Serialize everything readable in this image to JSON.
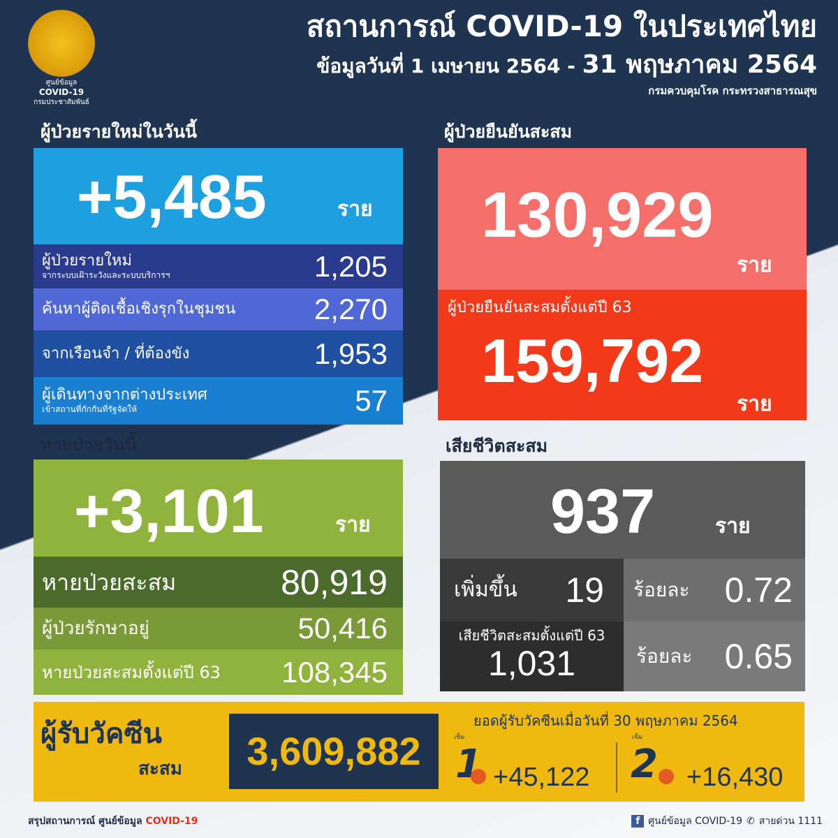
{
  "header": {
    "title": "สถานการณ์ COVID-19 ในประเทศไทย",
    "subtitle_prefix": "ข้อมูลวันที่ 1 เมษายน 2564 -",
    "subtitle_date": "31 พฤษภาคม 2564",
    "org": "กรมควบคุมโรค กระทรวงสาธารณสุข",
    "logo_line1": "ศูนย์ข้อมูล",
    "logo_line2": "COVID-19",
    "logo_line3": "กรมประชาสัมพันธ์"
  },
  "new_cases": {
    "heading": "ผู้ป่วยรายใหม่ในวันนี้",
    "total": "+5,485",
    "unit": "ราย",
    "rows": [
      {
        "label": "ผู้ป่วยรายใหม่",
        "sublabel": "จากระบบเฝ้าระวังและระบบบริการฯ",
        "value": "1,205"
      },
      {
        "label": "ค้นหาผู้ติดเชื้อเชิงรุกในชุมชน",
        "value": "2,270"
      },
      {
        "label": "จากเรือนจำ / ที่ต้องขัง",
        "value": "1,953"
      },
      {
        "label": "ผู้เดินทางจากต่างประเทศ",
        "sublabel": "เข้าสถานที่กักกันที่รัฐจัดให้",
        "value": "57"
      }
    ]
  },
  "cumulative": {
    "heading": "ผู้ป่วยยืนยันสะสม",
    "total": "130,929",
    "unit": "ราย",
    "since63_label": "ผู้ป่วยยืนยันสะสมตั้งแต่ปี 63",
    "since63_total": "159,792",
    "since63_unit": "ราย"
  },
  "recovered": {
    "heading": "หายป่วยวันนี้",
    "total": "+3,101",
    "unit": "ราย",
    "rows": [
      {
        "label": "หายป่วยสะสม",
        "value": "80,919"
      },
      {
        "label": "ผู้ป่วยรักษาอยู่",
        "value": "50,416"
      },
      {
        "label": "หายป่วยสะสมตั้งแต่ปี 63",
        "value": "108,345"
      }
    ]
  },
  "deaths": {
    "heading": "เสียชีวิตสะสม",
    "total": "937",
    "unit": "ราย",
    "increase_label": "เพิ่มขึ้น",
    "increase": "19",
    "pct_label": "ร้อยละ",
    "pct": "0.72",
    "since63_label": "เสียชีวิตสะสมตั้งแต่ปี 63",
    "since63_total": "1,031",
    "since63_pct_label": "ร้อยละ",
    "since63_pct": "0.65"
  },
  "vaccine": {
    "label_main": "ผู้รับวัคซีน",
    "label_sub": "สะสม",
    "total": "3,609,882",
    "date_label": "ยอดผู้รับวัคซีนเมื่อวันที่ 30 พฤษภาคม 2564",
    "dose_word": "เข็ม",
    "dose1": "1",
    "dose1_value": "+45,122",
    "dose2": "2",
    "dose2_value": "+16,430"
  },
  "footer": {
    "left_prefix": "สรุปสถานการณ์ ศูนย์ข้อมูล ",
    "left_brand": "COVID-19",
    "fb": "ศูนย์ข้อมูล COVID-19",
    "hotline": "สายด่วน 1111"
  },
  "colors": {
    "navy": "#1e3450",
    "blue": "#1d9fe0",
    "salmon": "#f46f6a",
    "red": "#f23a1a",
    "green": "#8fb33c",
    "gray": "#5a5a5a",
    "yellow": "#f0b90f"
  }
}
